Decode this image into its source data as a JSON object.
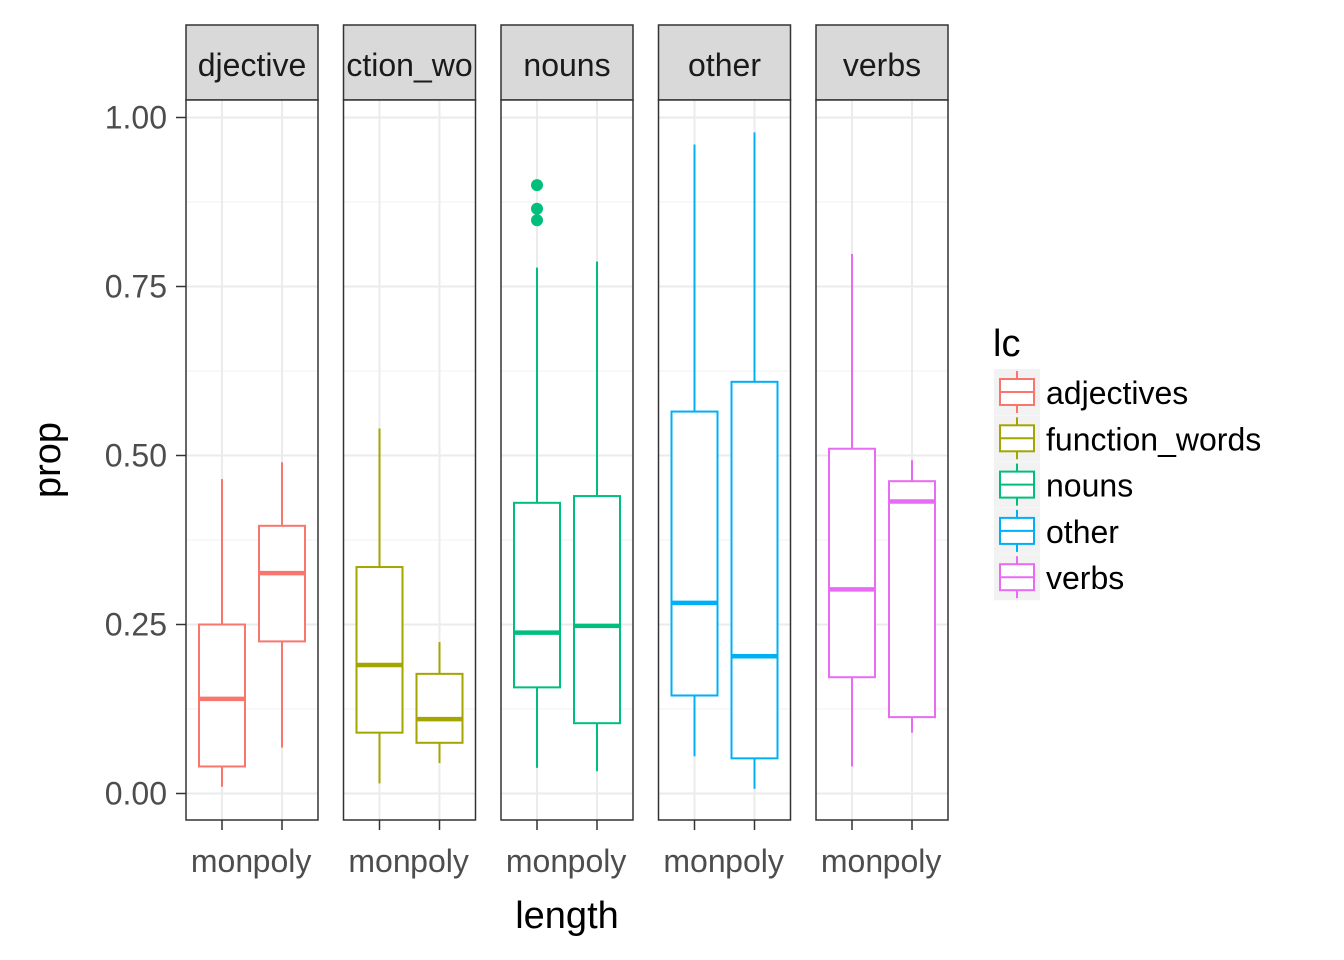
{
  "chart_data": {
    "type": "boxplot",
    "xlabel": "length",
    "ylabel": "prop",
    "ylim": [
      -0.04,
      1.04
    ],
    "yticks": [
      0.0,
      0.25,
      0.5,
      0.75,
      1.0
    ],
    "ytick_labels": [
      "0.00",
      "0.25",
      "0.50",
      "0.75",
      "1.00"
    ],
    "categories": [
      "mon",
      "poly"
    ],
    "grid": true,
    "legend": {
      "title": "lc",
      "placement": "right",
      "entries": [
        "adjectives",
        "function_words",
        "nouns",
        "other",
        "verbs"
      ]
    },
    "colors": {
      "adjectives": "#F8766D",
      "function_words": "#A3A500",
      "nouns": "#00BF7D",
      "other": "#00B0F6",
      "verbs": "#E76BF3"
    },
    "facets": [
      {
        "label": "adjectives",
        "strip_text": "djective",
        "group": "adjectives",
        "boxes": [
          {
            "x": "mon",
            "min": 0.01,
            "q1": 0.04,
            "median": 0.14,
            "q3": 0.25,
            "max": 0.465,
            "outliers": []
          },
          {
            "x": "poly",
            "min": 0.068,
            "q1": 0.225,
            "median": 0.326,
            "q3": 0.396,
            "max": 0.49,
            "outliers": []
          }
        ]
      },
      {
        "label": "function_words",
        "strip_text": "ction_wo",
        "group": "function_words",
        "boxes": [
          {
            "x": "mon",
            "min": 0.015,
            "q1": 0.09,
            "median": 0.19,
            "q3": 0.335,
            "max": 0.54,
            "outliers": []
          },
          {
            "x": "poly",
            "min": 0.045,
            "q1": 0.075,
            "median": 0.11,
            "q3": 0.177,
            "max": 0.224,
            "outliers": []
          }
        ]
      },
      {
        "label": "nouns",
        "strip_text": "nouns",
        "group": "nouns",
        "boxes": [
          {
            "x": "mon",
            "min": 0.038,
            "q1": 0.157,
            "median": 0.238,
            "q3": 0.43,
            "max": 0.778,
            "outliers": [
              0.848,
              0.865,
              0.9
            ]
          },
          {
            "x": "poly",
            "min": 0.033,
            "q1": 0.104,
            "median": 0.248,
            "q3": 0.44,
            "max": 0.787,
            "outliers": []
          }
        ]
      },
      {
        "label": "other",
        "strip_text": "other",
        "group": "other",
        "boxes": [
          {
            "x": "mon",
            "min": 0.055,
            "q1": 0.145,
            "median": 0.282,
            "q3": 0.565,
            "max": 0.96,
            "outliers": []
          },
          {
            "x": "poly",
            "min": 0.007,
            "q1": 0.052,
            "median": 0.203,
            "q3": 0.609,
            "max": 0.978,
            "outliers": []
          }
        ]
      },
      {
        "label": "verbs",
        "strip_text": "verbs",
        "group": "verbs",
        "boxes": [
          {
            "x": "mon",
            "min": 0.04,
            "q1": 0.172,
            "median": 0.302,
            "q3": 0.51,
            "max": 0.798,
            "outliers": []
          },
          {
            "x": "poly",
            "min": 0.09,
            "q1": 0.113,
            "median": 0.432,
            "q3": 0.462,
            "max": 0.493,
            "outliers": []
          }
        ]
      }
    ]
  }
}
